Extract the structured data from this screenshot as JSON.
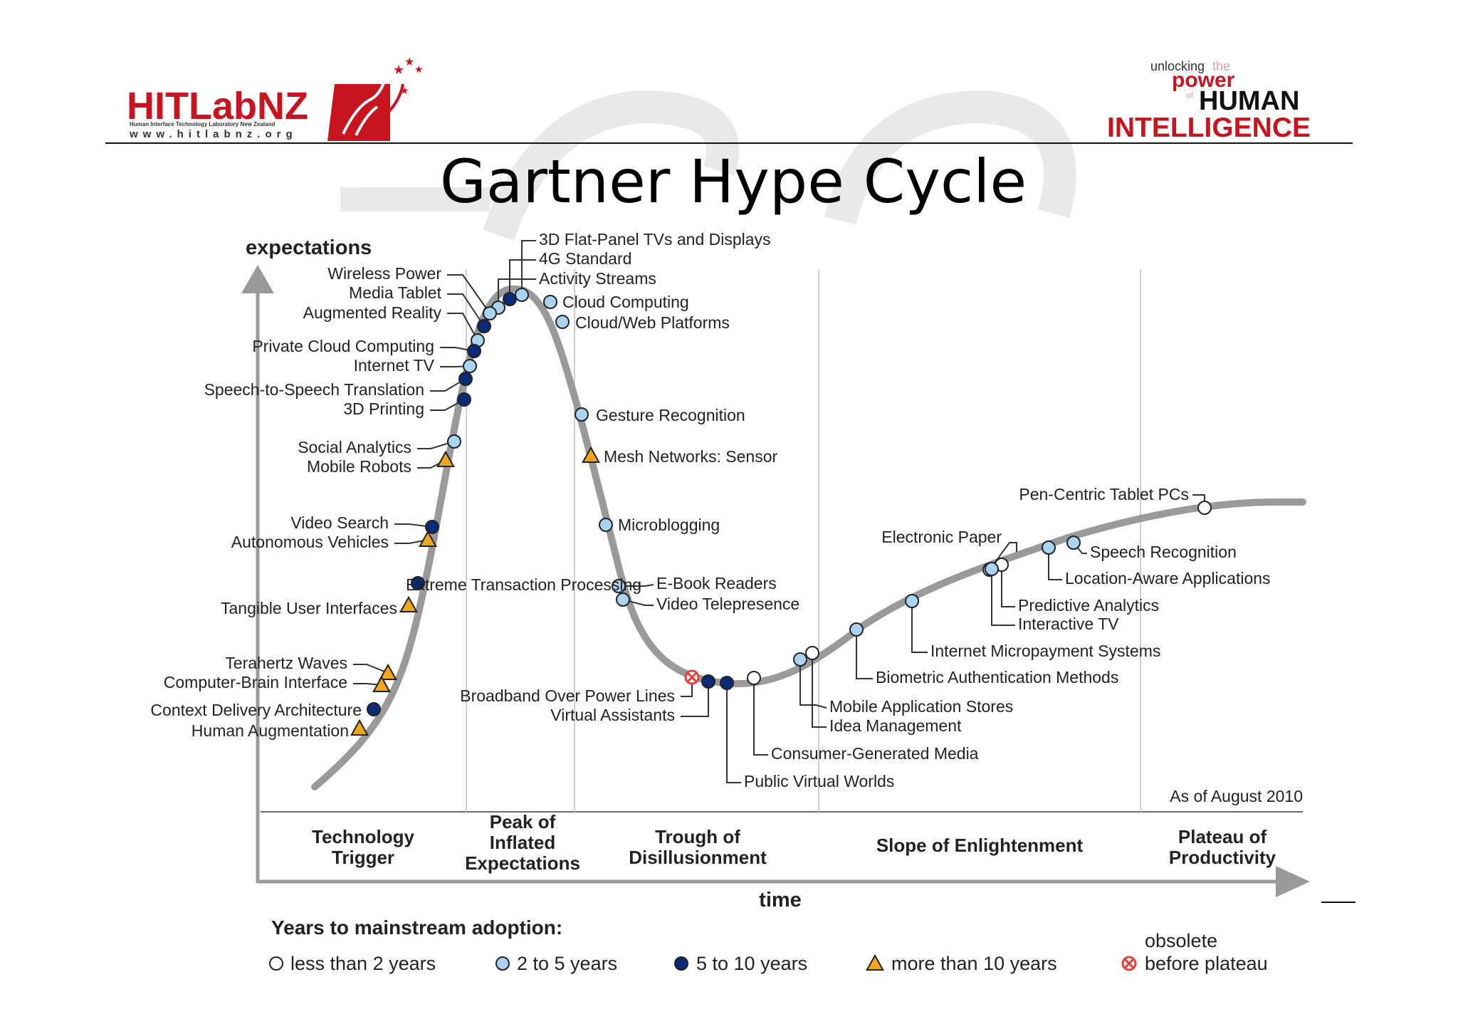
{
  "header": {
    "logo_main": "HITLabNZ",
    "logo_sub": "Human Interface Technology Laboratory New Zealand",
    "logo_url": "www.hitlabnz.org",
    "tagline_1": "unlocking",
    "tagline_2": "the",
    "tagline_3": "power",
    "tagline_4": "of",
    "tagline_5": "HUMAN",
    "tagline_6": "INTELLIGENCE"
  },
  "title": "Gartner Hype Cycle",
  "axis": {
    "y_label": "expectations",
    "x_label": "time",
    "as_of": "As of August 2010"
  },
  "phases": [
    {
      "id": "trigger",
      "lines": [
        "Technology",
        "Trigger"
      ]
    },
    {
      "id": "peak",
      "lines": [
        "Peak of",
        "Inflated",
        "Expectations"
      ]
    },
    {
      "id": "trough",
      "lines": [
        "Trough of",
        "Disillusionment"
      ]
    },
    {
      "id": "slope",
      "lines": [
        "Slope of Enlightenment"
      ]
    },
    {
      "id": "plateau",
      "lines": [
        "Plateau of",
        "Productivity"
      ]
    }
  ],
  "legend": {
    "title": "Years to mainstream adoption:",
    "items": [
      {
        "type": "lt2",
        "label": "less than 2 years"
      },
      {
        "type": "2to5",
        "label": "2 to 5 years"
      },
      {
        "type": "5to10",
        "label": "5 to 10 years"
      },
      {
        "type": "gt10",
        "label": "more than 10 years"
      },
      {
        "type": "obsolete",
        "label": "obsolete",
        "label2": "before plateau"
      }
    ]
  },
  "colors": {
    "curve": "#9a9a9a",
    "lt2": "#ffffff",
    "2to5": "#a9d3f0",
    "5to10": "#0b2a78",
    "gt10": "#f3a51b",
    "obsolete": "#e8403a",
    "logo_red": "#c8141e",
    "text": "#222222"
  },
  "technologies": [
    {
      "name": "3D Flat-Panel TVs and Displays",
      "type": "2to5"
    },
    {
      "name": "4G Standard",
      "type": "5to10"
    },
    {
      "name": "Activity Streams",
      "type": "2to5"
    },
    {
      "name": "Wireless Power",
      "type": "2to5"
    },
    {
      "name": "Media Tablet",
      "type": "5to10"
    },
    {
      "name": "Augmented Reality",
      "type": "2to5"
    },
    {
      "name": "Private Cloud Computing",
      "type": "5to10"
    },
    {
      "name": "Internet TV",
      "type": "2to5"
    },
    {
      "name": "Speech-to-Speech Translation",
      "type": "5to10"
    },
    {
      "name": "3D Printing",
      "type": "5to10"
    },
    {
      "name": "Social Analytics",
      "type": "2to5"
    },
    {
      "name": "Mobile Robots",
      "type": "gt10"
    },
    {
      "name": "Video Search",
      "type": "5to10"
    },
    {
      "name": "Autonomous Vehicles",
      "type": "gt10"
    },
    {
      "name": "Extreme Transaction Processing",
      "type": "5to10"
    },
    {
      "name": "Tangible User Interfaces",
      "type": "gt10"
    },
    {
      "name": "Terahertz Waves",
      "type": "gt10"
    },
    {
      "name": "Computer-Brain Interface",
      "type": "gt10"
    },
    {
      "name": "Context Delivery Architecture",
      "type": "5to10"
    },
    {
      "name": "Human Augmentation",
      "type": "gt10"
    },
    {
      "name": "Cloud Computing",
      "type": "2to5"
    },
    {
      "name": "Cloud/Web Platforms",
      "type": "2to5"
    },
    {
      "name": "Gesture Recognition",
      "type": "2to5"
    },
    {
      "name": "Mesh Networks: Sensor",
      "type": "gt10"
    },
    {
      "name": "Microblogging",
      "type": "2to5"
    },
    {
      "name": "E-Book Readers",
      "type": "2to5"
    },
    {
      "name": "Video Telepresence",
      "type": "2to5"
    },
    {
      "name": "Broadband Over Power Lines",
      "type": "obsolete"
    },
    {
      "name": "Virtual Assistants",
      "type": "5to10"
    },
    {
      "name": "Public Virtual Worlds",
      "type": "5to10"
    },
    {
      "name": "Consumer-Generated Media",
      "type": "lt2"
    },
    {
      "name": "Mobile Application Stores",
      "type": "2to5"
    },
    {
      "name": "Idea Management",
      "type": "lt2"
    },
    {
      "name": "Biometric Authentication Methods",
      "type": "2to5"
    },
    {
      "name": "Internet Micropayment Systems",
      "type": "2to5"
    },
    {
      "name": "Electronic Paper",
      "type": "2to5"
    },
    {
      "name": "Predictive Analytics",
      "type": "lt2"
    },
    {
      "name": "Interactive TV",
      "type": "2to5"
    },
    {
      "name": "Location-Aware Applications",
      "type": "2to5"
    },
    {
      "name": "Speech Recognition",
      "type": "2to5"
    },
    {
      "name": "Pen-Centric Tablet PCs",
      "type": "lt2"
    }
  ]
}
